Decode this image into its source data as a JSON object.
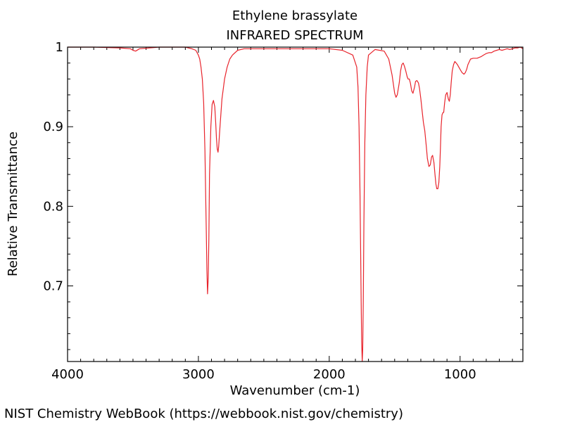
{
  "chart_data": {
    "type": "line",
    "title": "Ethylene brassylate",
    "subtitle": "INFRARED SPECTRUM",
    "xlabel": "Wavenumber (cm-1)",
    "ylabel": "Relative Transmittance",
    "xlim": [
      4000,
      520
    ],
    "ylim": [
      0.605,
      1.0
    ],
    "x_reversed": true,
    "grid": false,
    "x_ticks": [
      {
        "value": 4000,
        "label": "4000"
      },
      {
        "value": 3000,
        "label": "3000"
      },
      {
        "value": 2000,
        "label": "2000"
      },
      {
        "value": 1000,
        "label": "1000"
      }
    ],
    "y_ticks": [
      {
        "value": 1.0,
        "label": "1"
      },
      {
        "value": 0.9,
        "label": "0.9"
      },
      {
        "value": 0.8,
        "label": "0.8"
      },
      {
        "value": 0.7,
        "label": "0.7"
      }
    ],
    "series": [
      {
        "color": "#e8242c",
        "x": [
          4000,
          3800,
          3600,
          3520,
          3500,
          3480,
          3450,
          3300,
          3100,
          3050,
          3020,
          3000,
          2990,
          2980,
          2970,
          2960,
          2950,
          2940,
          2935,
          2930,
          2925,
          2920,
          2915,
          2905,
          2895,
          2885,
          2875,
          2868,
          2862,
          2856,
          2850,
          2845,
          2835,
          2820,
          2800,
          2780,
          2760,
          2740,
          2700,
          2650,
          2600,
          2400,
          2200,
          2000,
          1900,
          1820,
          1790,
          1780,
          1772,
          1765,
          1760,
          1756,
          1752,
          1748,
          1744,
          1740,
          1735,
          1728,
          1720,
          1710,
          1700,
          1650,
          1580,
          1545,
          1520,
          1500,
          1490,
          1480,
          1465,
          1455,
          1445,
          1435,
          1425,
          1415,
          1405,
          1398,
          1388,
          1380,
          1370,
          1360,
          1348,
          1340,
          1330,
          1318,
          1310,
          1300,
          1290,
          1280,
          1270,
          1258,
          1250,
          1238,
          1228,
          1218,
          1210,
          1200,
          1192,
          1185,
          1178,
          1170,
          1162,
          1155,
          1150,
          1145,
          1138,
          1130,
          1125,
          1118,
          1110,
          1100,
          1090,
          1082,
          1075,
          1068,
          1060,
          1050,
          1040,
          1030,
          1020,
          1010,
          1000,
          985,
          970,
          960,
          950,
          940,
          920,
          900,
          870,
          840,
          820,
          800,
          780,
          760,
          740,
          720,
          700,
          680,
          660,
          640,
          620,
          600,
          580,
          560,
          540,
          520
        ],
        "y": [
          1.0,
          1.0,
          0.999,
          0.998,
          0.996,
          0.995,
          0.998,
          1.0,
          1.0,
          0.998,
          0.996,
          0.99,
          0.985,
          0.975,
          0.96,
          0.93,
          0.87,
          0.77,
          0.72,
          0.69,
          0.71,
          0.76,
          0.84,
          0.9,
          0.928,
          0.933,
          0.925,
          0.905,
          0.885,
          0.872,
          0.868,
          0.875,
          0.9,
          0.935,
          0.96,
          0.975,
          0.985,
          0.99,
          0.996,
          0.998,
          0.998,
          0.998,
          0.998,
          0.998,
          0.996,
          0.99,
          0.975,
          0.95,
          0.9,
          0.82,
          0.74,
          0.68,
          0.63,
          0.605,
          0.62,
          0.68,
          0.78,
          0.88,
          0.94,
          0.975,
          0.99,
          0.997,
          0.995,
          0.985,
          0.965,
          0.942,
          0.937,
          0.94,
          0.955,
          0.97,
          0.978,
          0.98,
          0.976,
          0.97,
          0.963,
          0.96,
          0.96,
          0.955,
          0.945,
          0.942,
          0.95,
          0.957,
          0.958,
          0.955,
          0.948,
          0.935,
          0.92,
          0.905,
          0.895,
          0.875,
          0.86,
          0.85,
          0.852,
          0.862,
          0.864,
          0.855,
          0.84,
          0.828,
          0.822,
          0.822,
          0.83,
          0.85,
          0.875,
          0.9,
          0.915,
          0.918,
          0.918,
          0.93,
          0.94,
          0.943,
          0.935,
          0.932,
          0.94,
          0.955,
          0.97,
          0.978,
          0.982,
          0.98,
          0.978,
          0.975,
          0.972,
          0.968,
          0.966,
          0.968,
          0.972,
          0.978,
          0.985,
          0.986,
          0.986,
          0.988,
          0.99,
          0.992,
          0.993,
          0.993,
          0.995,
          0.996,
          0.997,
          0.996,
          0.997,
          0.998,
          0.997,
          0.998,
          0.999,
          0.999,
          1.0,
          0.998
        ]
      }
    ]
  },
  "footer": {
    "credit": "NIST Chemistry WebBook (https://webbook.nist.gov/chemistry)"
  }
}
